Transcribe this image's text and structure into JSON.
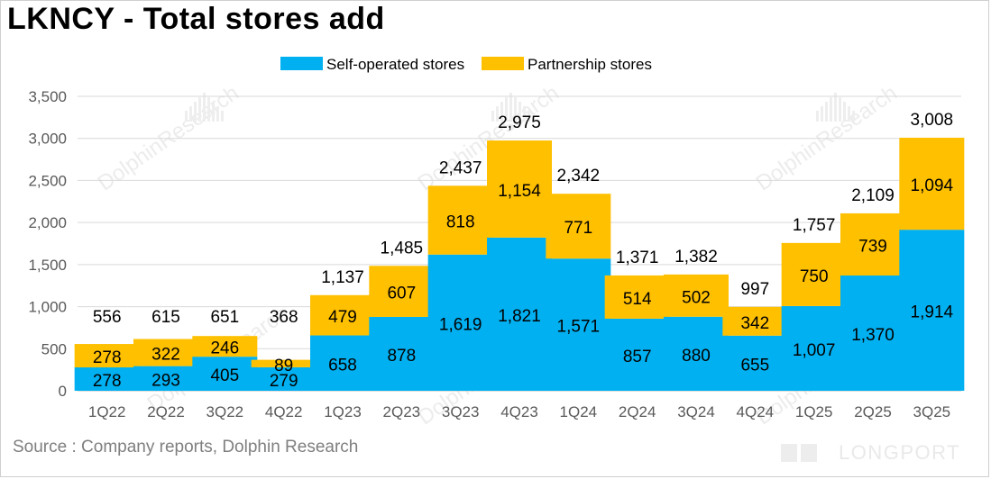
{
  "title": "LKNCY - Total stores add",
  "source": "Source : Company reports, Dolphin Research",
  "watermark": "DolphinResearch",
  "brand": "LONGPORT",
  "chart_data": {
    "type": "bar",
    "stacked": true,
    "categories": [
      "1Q22",
      "2Q22",
      "3Q22",
      "4Q22",
      "1Q23",
      "2Q23",
      "3Q23",
      "4Q23",
      "1Q24",
      "2Q24",
      "3Q24",
      "4Q24",
      "1Q25",
      "2Q25",
      "3Q25"
    ],
    "series": [
      {
        "name": "Self-operated stores",
        "color": "#00b0f0",
        "values": [
          278,
          293,
          405,
          279,
          658,
          878,
          1619,
          1821,
          1571,
          857,
          880,
          655,
          1007,
          1370,
          1914
        ]
      },
      {
        "name": "Partnership stores",
        "color": "#ffc000",
        "values": [
          278,
          322,
          246,
          89,
          479,
          607,
          818,
          1154,
          771,
          514,
          502,
          342,
          750,
          739,
          1094
        ]
      }
    ],
    "totals": [
      556,
      615,
      651,
      368,
      1137,
      1485,
      2437,
      2975,
      2342,
      1371,
      1382,
      997,
      1757,
      2109,
      3008
    ],
    "ylim": [
      0,
      3500
    ],
    "yticks": [
      0,
      500,
      1000,
      1500,
      2000,
      2500,
      3000,
      3500
    ],
    "legend_position": "top-center",
    "xlabel": "",
    "ylabel": ""
  }
}
